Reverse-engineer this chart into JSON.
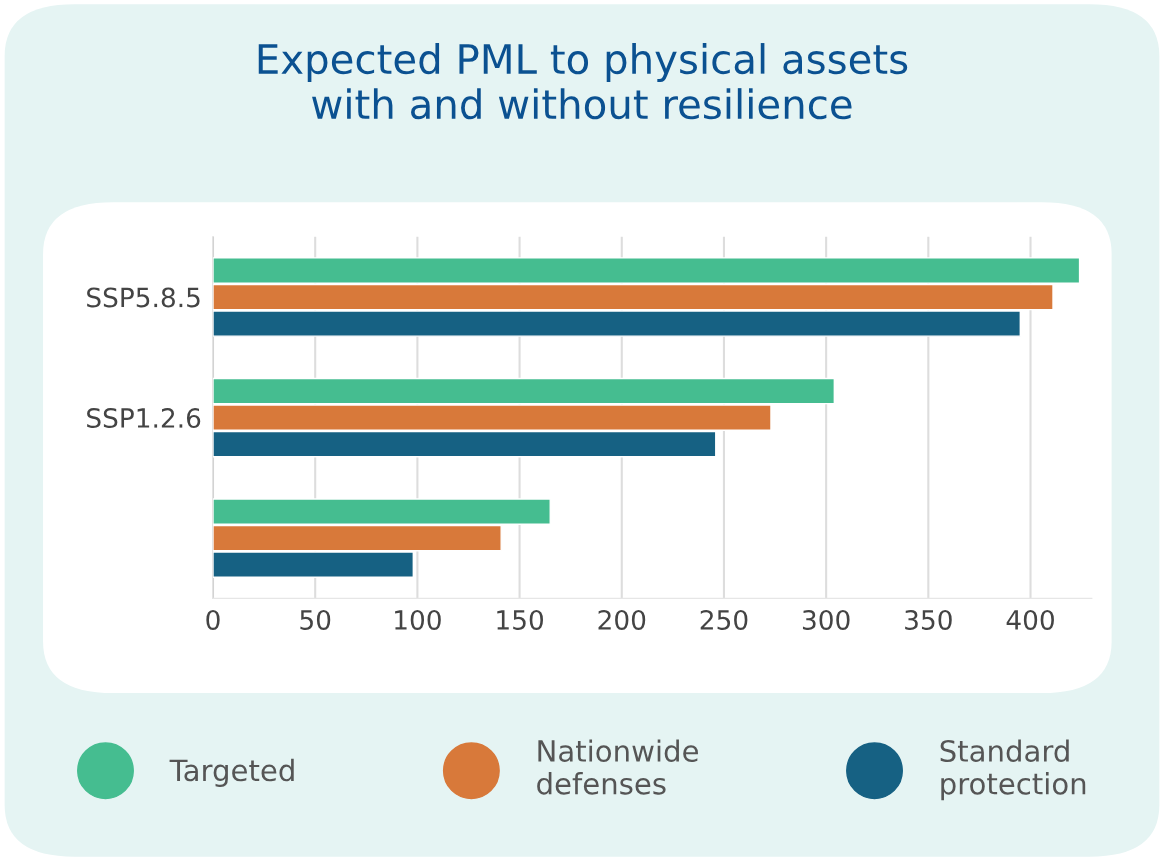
{
  "chart_data": {
    "type": "bar",
    "orientation": "horizontal",
    "title": "Expected PML to physical assets\nwith and without resilience",
    "categories": [
      "SSP5.8.5",
      "SSP1.2.6",
      null
    ],
    "series": [
      {
        "name": "Targeted",
        "color": "#45bd90",
        "values": [
          424,
          304,
          165
        ]
      },
      {
        "name": "Nationwide\ndefenses",
        "color": "#d8793a",
        "values": [
          411,
          273,
          141
        ]
      },
      {
        "name": "Standard\nprotection",
        "color": "#166183",
        "values": [
          395,
          246,
          98
        ]
      }
    ],
    "xlim": [
      0,
      430
    ],
    "xticks": [
      0,
      50,
      100,
      150,
      200,
      250,
      300,
      350,
      400
    ],
    "grid": "x",
    "legend": "bottom",
    "marker": "circle"
  }
}
